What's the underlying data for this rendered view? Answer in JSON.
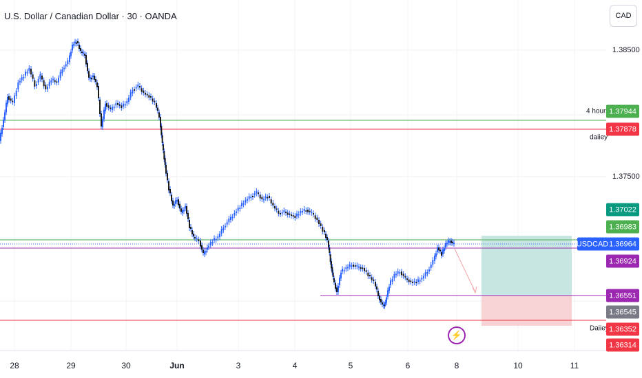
{
  "title": "U.S. Dollar / Canadian Dollar · 30 · OANDA",
  "currency_button": "CAD",
  "symbol": "USDCAD",
  "alert_icon": "lightning-icon",
  "price_ticks": [
    "1.38500",
    "1.37500"
  ],
  "price_labels": [
    {
      "text": "1.37944",
      "color": "#4caf50"
    },
    {
      "text": "1.37878",
      "color": "#f23645"
    },
    {
      "text": "1.37022",
      "color": "#089981"
    },
    {
      "text": "1.36983",
      "color": "#4caf50"
    },
    {
      "text": "1.36964",
      "color": "#2962ff"
    },
    {
      "text": "1.36924",
      "color": "#9c27b0"
    },
    {
      "text": "1.36551",
      "color": "#9c27b0"
    },
    {
      "text": "1.36545",
      "color": "#787b86"
    },
    {
      "text": "1.36352",
      "color": "#f23645"
    },
    {
      "text": "1.36314",
      "color": "#f23645"
    }
  ],
  "level_notes": [
    "4 hours",
    "daiiey",
    "Daiiey"
  ],
  "time_ticks": [
    "28",
    "29",
    "30",
    "Jun",
    "3",
    "4",
    "5",
    "6",
    "8",
    "10",
    "11"
  ],
  "colors": {
    "candle_body": "#1a1a1a",
    "candle_wick": "#2962ff",
    "green_line": "#4caf50",
    "red_line": "#f23645",
    "purple_line": "#9c27b0",
    "target_zone": "#c8e6e1",
    "stop_zone": "#f8d3d6"
  }
}
